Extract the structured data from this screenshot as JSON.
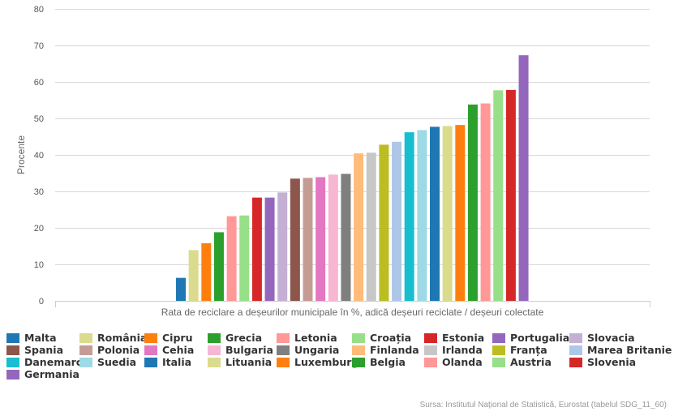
{
  "chart_data": {
    "type": "bar",
    "title": "",
    "xlabel": "Rata de reciclare a deșeurilor municipale în %, adică deșeuri reciclate / deșeuri colectate",
    "ylabel": "Procente",
    "ylim": [
      0,
      80
    ],
    "yticks": [
      "0",
      "10",
      "20",
      "30",
      "40",
      "50",
      "60",
      "70",
      "80"
    ],
    "grid": true,
    "legend_position": "bottom",
    "series": [
      {
        "name": "Malta",
        "value": 6.3,
        "color": "#1f77b4"
      },
      {
        "name": "România",
        "value": 13.9,
        "color": "#dbdb8d"
      },
      {
        "name": "Cipru",
        "value": 15.8,
        "color": "#ff7f0e"
      },
      {
        "name": "Grecia",
        "value": 18.8,
        "color": "#2ca02c"
      },
      {
        "name": "Letonia",
        "value": 23.2,
        "color": "#ff9896"
      },
      {
        "name": "Croația",
        "value": 23.4,
        "color": "#98df8a"
      },
      {
        "name": "Estonia",
        "value": 28.3,
        "color": "#d62728"
      },
      {
        "name": "Portugalia",
        "value": 28.3,
        "color": "#9467bd"
      },
      {
        "name": "Slovacia",
        "value": 29.7,
        "color": "#c5b0d5"
      },
      {
        "name": "Spania",
        "value": 33.5,
        "color": "#8c564b"
      },
      {
        "name": "Polonia",
        "value": 33.7,
        "color": "#c49c94"
      },
      {
        "name": "Cehia",
        "value": 33.9,
        "color": "#e377c2"
      },
      {
        "name": "Bulgaria",
        "value": 34.6,
        "color": "#f7b6d2"
      },
      {
        "name": "Ungaria",
        "value": 34.8,
        "color": "#7f7f7f"
      },
      {
        "name": "Finlanda",
        "value": 40.4,
        "color": "#ffbb78"
      },
      {
        "name": "Irlanda",
        "value": 40.6,
        "color": "#c7c7c7"
      },
      {
        "name": "Franța",
        "value": 42.8,
        "color": "#bcbd22"
      },
      {
        "name": "Marea Britanie",
        "value": 43.6,
        "color": "#aec7e8"
      },
      {
        "name": "Danemarca",
        "value": 46.2,
        "color": "#17becf"
      },
      {
        "name": "Suedia",
        "value": 46.8,
        "color": "#9edae5"
      },
      {
        "name": "Italia",
        "value": 47.7,
        "color": "#1f77b4"
      },
      {
        "name": "Lituania",
        "value": 47.9,
        "color": "#dbdb8d"
      },
      {
        "name": "Luxemburg",
        "value": 48.2,
        "color": "#ff7f0e"
      },
      {
        "name": "Belgia",
        "value": 53.8,
        "color": "#2ca02c"
      },
      {
        "name": "Olanda",
        "value": 54.1,
        "color": "#ff9896"
      },
      {
        "name": "Austria",
        "value": 57.7,
        "color": "#98df8a"
      },
      {
        "name": "Slovenia",
        "value": 57.8,
        "color": "#d62728"
      },
      {
        "name": "Germania",
        "value": 67.3,
        "color": "#9467bd"
      }
    ]
  },
  "source_text": "Sursa: Institutul Național de Statistică, Eurostat (tabelul SDG_11_60)"
}
